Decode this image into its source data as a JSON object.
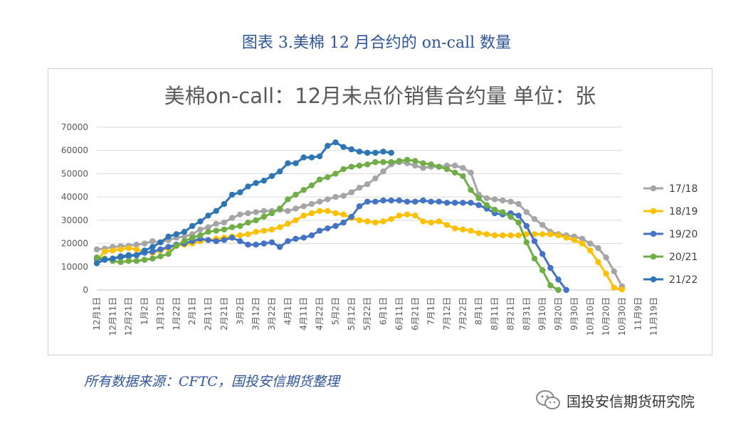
{
  "caption": "图表 3.美棉 12 月合约的 on-call 数量",
  "source_note": "所有数据来源：CFTC，国投安信期货整理",
  "watermark": "国投安信期货研究院",
  "chart_data": {
    "type": "line",
    "title": "美棉on-call：12月未点价销售合约量 单位：张",
    "xlabel": "",
    "ylabel": "",
    "ylim": [
      0,
      70000
    ],
    "yticks": [
      0,
      10000,
      20000,
      30000,
      40000,
      50000,
      60000,
      70000
    ],
    "grid": true,
    "legend": "right",
    "x_tick_labels": [
      "12月1日",
      "12月11日",
      "12月21日",
      "1月2日",
      "1月12日",
      "1月22日",
      "2月1日",
      "2月11日",
      "2月21日",
      "3月2日",
      "3月12日",
      "3月22日",
      "4月1日",
      "4月11日",
      "4月22日",
      "5月2日",
      "5月12日",
      "5月22日",
      "6月1日",
      "6月11日",
      "6月21日",
      "7月1日",
      "7月12日",
      "7月22日",
      "8月1日",
      "8月11日",
      "8月21日",
      "8月31日",
      "9月10日",
      "9月20日",
      "9月30日",
      "10月10日",
      "10月20日",
      "10月30日",
      "11月9日",
      "11月19日"
    ],
    "series": [
      {
        "name": "17/18",
        "color": "#a5a5a5",
        "values": [
          17500,
          17800,
          18500,
          18800,
          19000,
          19500,
          20000,
          21000,
          20500,
          21500,
          22500,
          23000,
          24000,
          26000,
          27000,
          28500,
          29000,
          31000,
          32500,
          33000,
          33500,
          34000,
          34000,
          34500,
          34000,
          35000,
          36000,
          37000,
          38000,
          39000,
          40000,
          40500,
          42000,
          44000,
          45500,
          48000,
          51000,
          54000,
          55000,
          54500,
          53500,
          52500,
          53000,
          53000,
          53500,
          53500,
          52500,
          50500,
          41000,
          39500,
          39000,
          38500,
          38000,
          37000,
          33500,
          30500,
          28000,
          25000,
          24000,
          23500,
          23000,
          22000,
          20000,
          18000,
          14000,
          8000,
          1500
        ]
      },
      {
        "name": "18/19",
        "color": "#ffc000",
        "values": [
          13000,
          16500,
          17000,
          17500,
          18000,
          17500,
          16500,
          16000,
          17000,
          18000,
          19000,
          19500,
          20000,
          21000,
          21500,
          22000,
          22500,
          23000,
          23500,
          24000,
          25000,
          25500,
          26000,
          27000,
          28500,
          30000,
          32000,
          33000,
          34000,
          34000,
          33000,
          32500,
          31000,
          30000,
          29500,
          29000,
          29500,
          30500,
          32000,
          32500,
          32000,
          29500,
          29000,
          29500,
          28000,
          26500,
          26000,
          25500,
          24500,
          24000,
          23500,
          23500,
          23500,
          23500,
          24000,
          24000,
          24000,
          24000,
          23500,
          22500,
          21500,
          20000,
          17000,
          12000,
          7000,
          1000,
          200
        ]
      },
      {
        "name": "19/20",
        "color": "#4472c4",
        "values": [
          13500,
          13000,
          13500,
          14000,
          14500,
          15000,
          16000,
          16500,
          17500,
          18500,
          19500,
          20000,
          21000,
          22000,
          21500,
          21000,
          21500,
          22500,
          21000,
          19500,
          19500,
          20000,
          20500,
          18500,
          21000,
          22000,
          22500,
          23500,
          25500,
          26500,
          27500,
          29000,
          31500,
          36000,
          38000,
          38000,
          38500,
          38500,
          38500,
          38000,
          38000,
          38500,
          38000,
          38000,
          37500,
          37500,
          37500,
          37500,
          36500,
          35000,
          33000,
          32500,
          33000,
          32000,
          27500,
          21000,
          15500,
          9500,
          4500,
          0
        ]
      },
      {
        "name": "20/21",
        "color": "#70ad47",
        "values": [
          14000,
          13500,
          12500,
          12000,
          12500,
          12500,
          13000,
          13500,
          14500,
          15500,
          19000,
          21000,
          22500,
          23500,
          25000,
          25500,
          26000,
          27000,
          27500,
          29000,
          30000,
          31500,
          33000,
          35000,
          39000,
          41000,
          43000,
          45000,
          47500,
          48500,
          50000,
          52000,
          53000,
          53500,
          54000,
          55000,
          55000,
          55000,
          55500,
          56000,
          55500,
          54500,
          54000,
          53000,
          52000,
          50500,
          49000,
          43000,
          39500,
          36500,
          34500,
          33500,
          31500,
          29000,
          20500,
          13500,
          8500,
          2000,
          0
        ]
      },
      {
        "name": "21/22",
        "color": "#2e75b6",
        "values": [
          11500,
          13000,
          13500,
          14500,
          15000,
          15000,
          17000,
          18500,
          20500,
          23000,
          24000,
          25000,
          27500,
          29500,
          32000,
          34000,
          37000,
          41000,
          42000,
          44500,
          46000,
          47000,
          49000,
          51000,
          54500,
          54500,
          57000,
          57000,
          57500,
          62000,
          63500,
          61500,
          60500,
          59500,
          59000,
          59000,
          59500,
          59000
        ]
      }
    ]
  }
}
